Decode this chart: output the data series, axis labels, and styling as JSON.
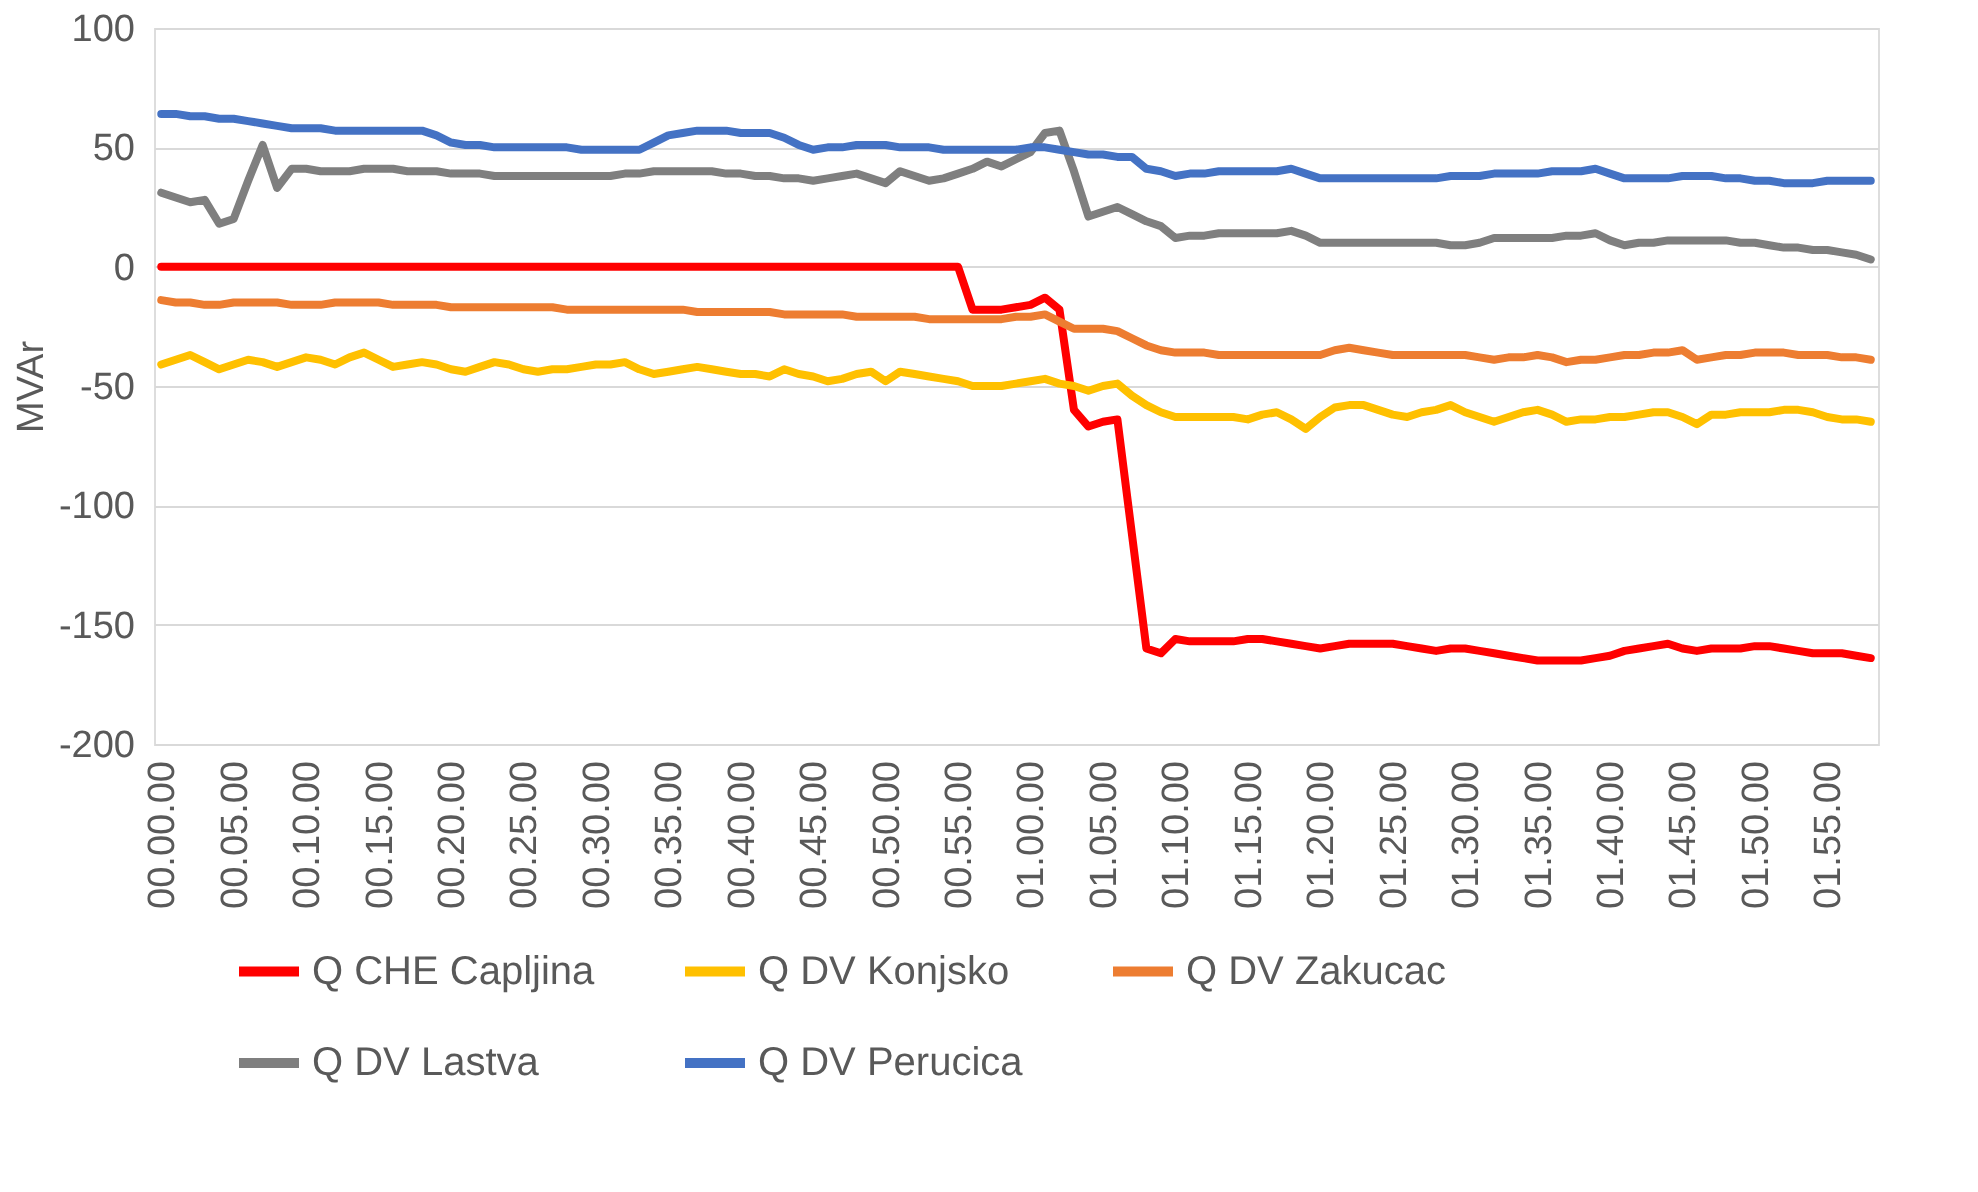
{
  "chart_data": {
    "type": "line",
    "ylabel": "MVAr",
    "ylim": [
      -200,
      100
    ],
    "yticks": [
      -200,
      -150,
      -100,
      -50,
      0,
      50,
      100
    ],
    "categories": [
      "00.00.00",
      null,
      null,
      null,
      null,
      "00.05.00",
      null,
      null,
      null,
      null,
      "00.10.00",
      null,
      null,
      null,
      null,
      "00.15.00",
      null,
      null,
      null,
      null,
      "00.20.00",
      null,
      null,
      null,
      null,
      "00.25.00",
      null,
      null,
      null,
      null,
      "00.30.00",
      null,
      null,
      null,
      null,
      "00.35.00",
      null,
      null,
      null,
      null,
      "00.40.00",
      null,
      null,
      null,
      null,
      "00.45.00",
      null,
      null,
      null,
      null,
      "00.50.00",
      null,
      null,
      null,
      null,
      "00.55.00",
      null,
      null,
      null,
      null,
      "01.00.00",
      null,
      null,
      null,
      null,
      "01.05.00",
      null,
      null,
      null,
      null,
      "01.10.00",
      null,
      null,
      null,
      null,
      "01.15.00",
      null,
      null,
      null,
      null,
      "01.20.00",
      null,
      null,
      null,
      null,
      "01.25.00",
      null,
      null,
      null,
      null,
      "01.30.00",
      null,
      null,
      null,
      null,
      "01.35.00",
      null,
      null,
      null,
      null,
      "01.40.00",
      null,
      null,
      null,
      null,
      "01.45.00",
      null,
      null,
      null,
      null,
      "01.50.00",
      null,
      null,
      null,
      null,
      "01.55.00",
      null,
      null,
      null
    ],
    "grid": "y",
    "legend": "bottom",
    "line_style": "solid",
    "series": [
      {
        "name": "Q CHE Capljina",
        "color": "#ff0000",
        "values": [
          0,
          0,
          0,
          0,
          0,
          0,
          0,
          0,
          0,
          0,
          0,
          0,
          0,
          0,
          0,
          0,
          0,
          0,
          0,
          0,
          0,
          0,
          0,
          0,
          0,
          0,
          0,
          0,
          0,
          0,
          0,
          0,
          0,
          0,
          0,
          0,
          0,
          0,
          0,
          0,
          0,
          0,
          0,
          0,
          0,
          0,
          0,
          0,
          0,
          0,
          0,
          0,
          0,
          0,
          0,
          0,
          -18,
          -18,
          -18,
          -17,
          -16,
          -13,
          -18,
          -60,
          -67,
          -65,
          -64,
          -112,
          -160,
          -162,
          -156,
          -157,
          -157,
          -157,
          -157,
          -156,
          -156,
          -157,
          -158,
          -159,
          -160,
          -159,
          -158,
          -158,
          -158,
          -158,
          -159,
          -160,
          -161,
          -160,
          -160,
          -161,
          -162,
          -163,
          -164,
          -165,
          -165,
          -165,
          -165,
          -164,
          -163,
          -161,
          -160,
          -159,
          -158,
          -160,
          -161,
          -160,
          -160,
          -160,
          -159,
          -159,
          -160,
          -161,
          -162,
          -162,
          -162,
          -163,
          -164
        ]
      },
      {
        "name": "Q DV Konjsko",
        "color": "#ffc000",
        "values": [
          -41,
          -39,
          -37,
          -40,
          -43,
          -41,
          -39,
          -40,
          -42,
          -40,
          -38,
          -39,
          -41,
          -38,
          -36,
          -39,
          -42,
          -41,
          -40,
          -41,
          -43,
          -44,
          -42,
          -40,
          -41,
          -43,
          -44,
          -43,
          -43,
          -42,
          -41,
          -41,
          -40,
          -43,
          -45,
          -44,
          -43,
          -42,
          -43,
          -44,
          -45,
          -45,
          -46,
          -43,
          -45,
          -46,
          -48,
          -47,
          -45,
          -44,
          -48,
          -44,
          -45,
          -46,
          -47,
          -48,
          -50,
          -50,
          -50,
          -49,
          -48,
          -47,
          -49,
          -50,
          -52,
          -50,
          -49,
          -54,
          -58,
          -61,
          -63,
          -63,
          -63,
          -63,
          -63,
          -64,
          -62,
          -61,
          -64,
          -68,
          -63,
          -59,
          -58,
          -58,
          -60,
          -62,
          -63,
          -61,
          -60,
          -58,
          -61,
          -63,
          -65,
          -63,
          -61,
          -60,
          -62,
          -65,
          -64,
          -64,
          -63,
          -63,
          -62,
          -61,
          -61,
          -63,
          -66,
          -62,
          -62,
          -61,
          -61,
          -61,
          -60,
          -60,
          -61,
          -63,
          -64,
          -64,
          -65
        ]
      },
      {
        "name": "Q DV Zakucac",
        "color": "#ed7d31",
        "values": [
          -14,
          -15,
          -15,
          -16,
          -16,
          -15,
          -15,
          -15,
          -15,
          -16,
          -16,
          -16,
          -15,
          -15,
          -15,
          -15,
          -16,
          -16,
          -16,
          -16,
          -17,
          -17,
          -17,
          -17,
          -17,
          -17,
          -17,
          -17,
          -18,
          -18,
          -18,
          -18,
          -18,
          -18,
          -18,
          -18,
          -18,
          -19,
          -19,
          -19,
          -19,
          -19,
          -19,
          -20,
          -20,
          -20,
          -20,
          -20,
          -21,
          -21,
          -21,
          -21,
          -21,
          -22,
          -22,
          -22,
          -22,
          -22,
          -22,
          -21,
          -21,
          -20,
          -23,
          -26,
          -26,
          -26,
          -27,
          -30,
          -33,
          -35,
          -36,
          -36,
          -36,
          -37,
          -37,
          -37,
          -37,
          -37,
          -37,
          -37,
          -37,
          -35,
          -34,
          -35,
          -36,
          -37,
          -37,
          -37,
          -37,
          -37,
          -37,
          -38,
          -39,
          -38,
          -38,
          -37,
          -38,
          -40,
          -39,
          -39,
          -38,
          -37,
          -37,
          -36,
          -36,
          -35,
          -39,
          -38,
          -37,
          -37,
          -36,
          -36,
          -36,
          -37,
          -37,
          -37,
          -38,
          -38,
          -39
        ]
      },
      {
        "name": "Q DV Lastva",
        "color": "#7f7f7f",
        "values": [
          31,
          29,
          27,
          28,
          18,
          20,
          36,
          51,
          33,
          41,
          41,
          40,
          40,
          40,
          41,
          41,
          41,
          40,
          40,
          40,
          39,
          39,
          39,
          38,
          38,
          38,
          38,
          38,
          38,
          38,
          38,
          38,
          39,
          39,
          40,
          40,
          40,
          40,
          40,
          39,
          39,
          38,
          38,
          37,
          37,
          36,
          37,
          38,
          39,
          37,
          35,
          40,
          38,
          36,
          37,
          39,
          41,
          44,
          42,
          45,
          48,
          56,
          57,
          40,
          21,
          23,
          25,
          22,
          19,
          17,
          12,
          13,
          13,
          14,
          14,
          14,
          14,
          14,
          15,
          13,
          10,
          10,
          10,
          10,
          10,
          10,
          10,
          10,
          10,
          9,
          9,
          10,
          12,
          12,
          12,
          12,
          12,
          13,
          13,
          14,
          11,
          9,
          10,
          10,
          11,
          11,
          11,
          11,
          11,
          10,
          10,
          9,
          8,
          8,
          7,
          7,
          6,
          5,
          3
        ]
      },
      {
        "name": "Q DV Perucica",
        "color": "#4472c4",
        "values": [
          64,
          64,
          63,
          63,
          62,
          62,
          61,
          60,
          59,
          58,
          58,
          58,
          57,
          57,
          57,
          57,
          57,
          57,
          57,
          55,
          52,
          51,
          51,
          50,
          50,
          50,
          50,
          50,
          50,
          49,
          49,
          49,
          49,
          49,
          52,
          55,
          56,
          57,
          57,
          57,
          56,
          56,
          56,
          54,
          51,
          49,
          50,
          50,
          51,
          51,
          51,
          50,
          50,
          50,
          49,
          49,
          49,
          49,
          49,
          49,
          50,
          50,
          49,
          48,
          47,
          47,
          46,
          46,
          41,
          40,
          38,
          39,
          39,
          40,
          40,
          40,
          40,
          40,
          41,
          39,
          37,
          37,
          37,
          37,
          37,
          37,
          37,
          37,
          37,
          38,
          38,
          38,
          39,
          39,
          39,
          39,
          40,
          40,
          40,
          41,
          39,
          37,
          37,
          37,
          37,
          38,
          38,
          38,
          37,
          37,
          36,
          36,
          35,
          35,
          35,
          36,
          36,
          36,
          36
        ]
      }
    ]
  }
}
